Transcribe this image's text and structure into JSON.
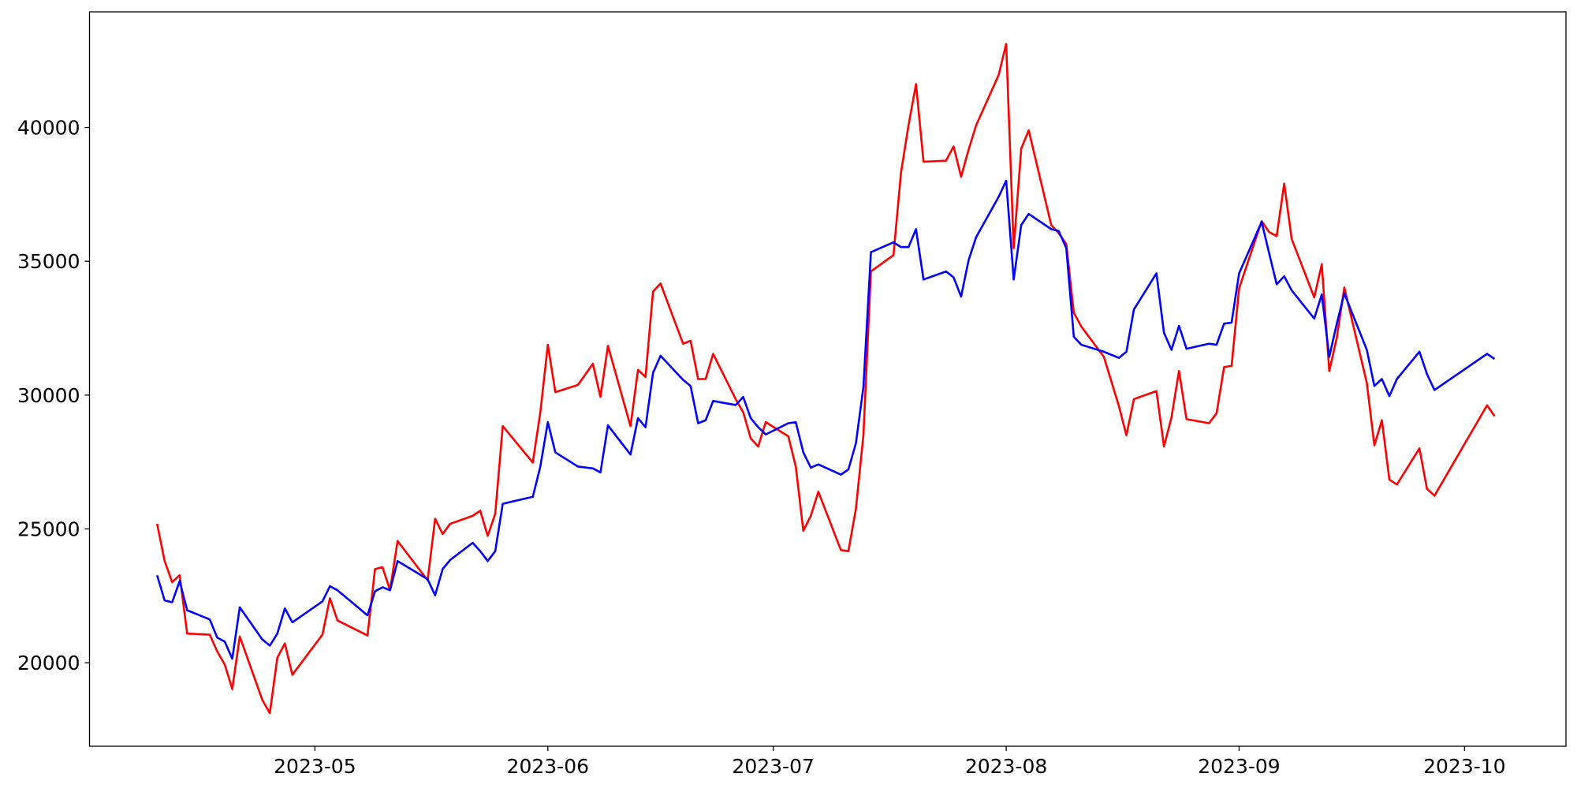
{
  "chart_data": {
    "type": "line",
    "x": [
      19457,
      19458,
      19459,
      19460,
      19461,
      19464,
      19465,
      19466,
      19467,
      19468,
      19471,
      19472,
      19473,
      19474,
      19475,
      19479,
      19480,
      19481,
      19485,
      19486,
      19487,
      19488,
      19489,
      19493,
      19494,
      19495,
      19496,
      19499,
      19500,
      19501,
      19502,
      19503,
      19507,
      19508,
      19509,
      19510,
      19513,
      19515,
      19516,
      19517,
      19520,
      19521,
      19522,
      19523,
      19524,
      19527,
      19528,
      19529,
      19530,
      19531,
      19534,
      19535,
      19536,
      19537,
      19538,
      19541,
      19542,
      19543,
      19544,
      19545,
      19548,
      19549,
      19550,
      19551,
      19552,
      19555,
      19556,
      19557,
      19558,
      19559,
      19562,
      19563,
      19564,
      19565,
      19566,
      19569,
      19570,
      19571,
      19572,
      19573,
      19576,
      19577,
      19578,
      19579,
      19580,
      19583,
      19585,
      19586,
      19587,
      19590,
      19591,
      19592,
      19593,
      19594,
      19597,
      19598,
      19599,
      19600,
      19601,
      19604,
      19605,
      19606,
      19607,
      19608,
      19611,
      19612,
      19613,
      19614,
      19615,
      19618,
      19619,
      19620,
      19621,
      19622,
      19625,
      19626,
      19627,
      19634,
      19635
    ],
    "series": [
      {
        "color": "#ff0000",
        "values": [
          25190,
          23800,
          23010,
          23270,
          21090,
          21050,
          20420,
          19930,
          19020,
          20980,
          18610,
          18120,
          20190,
          20720,
          19550,
          21050,
          22410,
          21580,
          21020,
          23500,
          23570,
          22710,
          24550,
          23080,
          25380,
          24810,
          25190,
          25490,
          25680,
          24740,
          25570,
          28840,
          27480,
          29360,
          31880,
          30110,
          30380,
          31170,
          29930,
          31840,
          28840,
          30940,
          30680,
          33870,
          34170,
          31920,
          32030,
          30600,
          30600,
          31540,
          29850,
          29360,
          28380,
          28080,
          28990,
          28460,
          27330,
          24930,
          25490,
          26390,
          24210,
          24170,
          25750,
          28500,
          34620,
          35230,
          38310,
          40080,
          41620,
          38720,
          38760,
          39290,
          38160,
          39170,
          40080,
          41960,
          43120,
          35490,
          39210,
          39890,
          36350,
          36050,
          35640,
          33080,
          32560,
          31430,
          29590,
          28500,
          29850,
          30150,
          28080,
          29170,
          30900,
          29100,
          28950,
          29320,
          31050,
          31090,
          33990,
          36500,
          36090,
          35940,
          37900,
          35830,
          33650,
          34890,
          30900,
          32140,
          34020,
          30450,
          28120,
          29060,
          26840,
          26660,
          28010,
          26500,
          26240,
          29620,
          29210
        ]
      },
      {
        "color": "#0000ff",
        "values": [
          23270,
          22330,
          22260,
          23050,
          21960,
          21620,
          20940,
          20790,
          20150,
          22070,
          20870,
          20640,
          21090,
          22030,
          21510,
          22290,
          22860,
          22710,
          21770,
          22670,
          22820,
          22710,
          23800,
          23120,
          22520,
          23500,
          23840,
          24480,
          24170,
          23800,
          24170,
          25940,
          26200,
          27330,
          28990,
          27860,
          27330,
          27260,
          27110,
          28870,
          27780,
          29140,
          28800,
          30830,
          31470,
          30570,
          30340,
          28950,
          29060,
          29780,
          29630,
          29930,
          29140,
          28800,
          28530,
          28950,
          28990,
          27860,
          27290,
          27410,
          27030,
          27220,
          28200,
          30300,
          35340,
          35710,
          35530,
          35530,
          36200,
          34320,
          34620,
          34400,
          33680,
          35040,
          35900,
          37410,
          38010,
          34320,
          36350,
          36770,
          36200,
          36130,
          35490,
          32180,
          31880,
          31620,
          31390,
          31620,
          33200,
          34550,
          32330,
          31690,
          32590,
          31730,
          31920,
          31880,
          32670,
          32710,
          34550,
          36470,
          35300,
          34140,
          34440,
          33910,
          32860,
          33760,
          31430,
          32670,
          33800,
          31690,
          30340,
          30600,
          29960,
          30600,
          31620,
          30790,
          30190,
          31540,
          31350
        ]
      }
    ],
    "xlim": [
      19448,
      19644.5
    ],
    "xticks": [
      {
        "value": 19478,
        "label": "2023-05"
      },
      {
        "value": 19509,
        "label": "2023-06"
      },
      {
        "value": 19539,
        "label": "2023-07"
      },
      {
        "value": 19570,
        "label": "2023-08"
      },
      {
        "value": 19601,
        "label": "2023-09"
      },
      {
        "value": 19631,
        "label": "2023-10"
      }
    ],
    "ylim": [
      16880,
      44320
    ],
    "yticks": [
      20000,
      25000,
      30000,
      35000,
      40000
    ],
    "grid": false
  }
}
